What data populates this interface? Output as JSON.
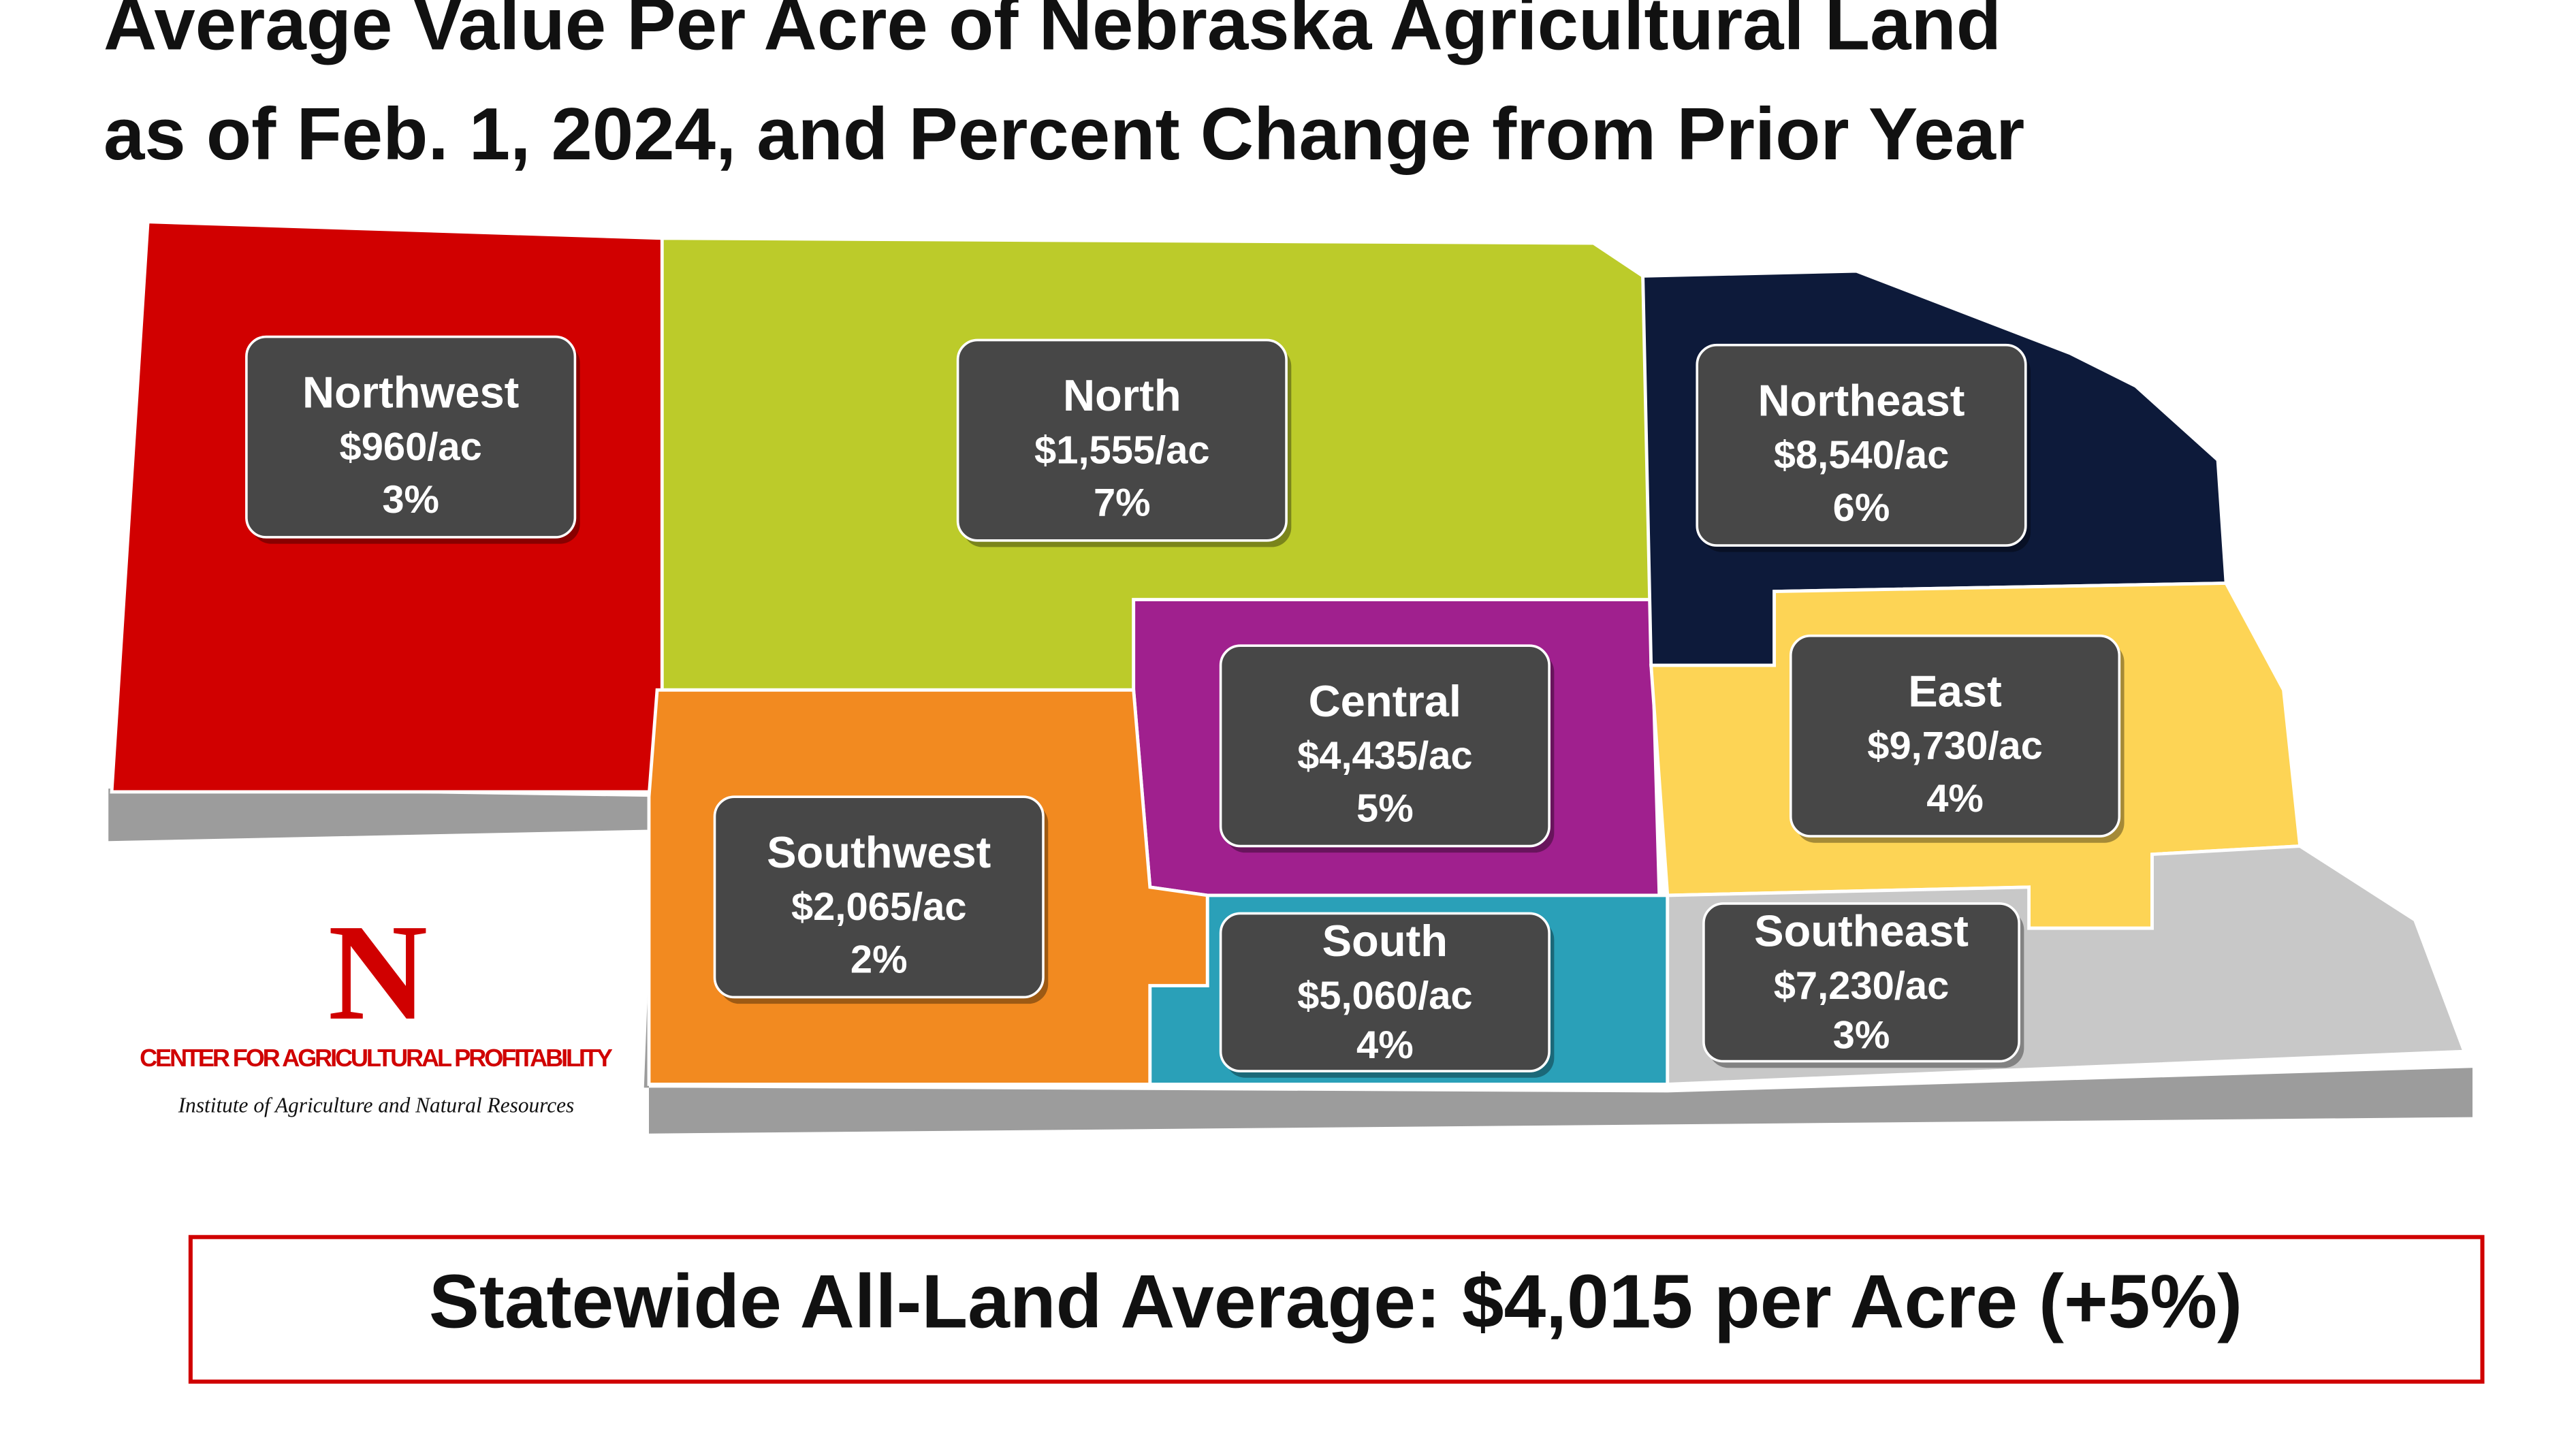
{
  "title": [
    "Average Value Per Acre of Nebraska Agricultural Land",
    "as of Feb. 1, 2024, and Percent Change from Prior Year"
  ],
  "regions": [
    {
      "name": "Northwest",
      "value": "$960/ac",
      "change": "3%"
    },
    {
      "name": "North",
      "value": "$1,555/ac",
      "change": "7%"
    },
    {
      "name": "Northeast",
      "value": "$8,540/ac",
      "change": "6%"
    },
    {
      "name": "Central",
      "value": "$4,435/ac",
      "change": "5%"
    },
    {
      "name": "East",
      "value": "$9,730/ac",
      "change": "4%"
    },
    {
      "name": "Southwest",
      "value": "$2,065/ac",
      "change": "2%"
    },
    {
      "name": "South",
      "value": "$5,060/ac",
      "change": "4%"
    },
    {
      "name": "Southeast",
      "value": "$7,230/ac",
      "change": "3%"
    }
  ],
  "statewide": "Statewide All-Land Average: $4,015 per Acre (+5%)",
  "logo": {
    "mark": "N",
    "center": "CENTER FOR AGRICULTURAL PROFITABILITY",
    "institute": "Institute of Agriculture and Natural Resources"
  }
}
